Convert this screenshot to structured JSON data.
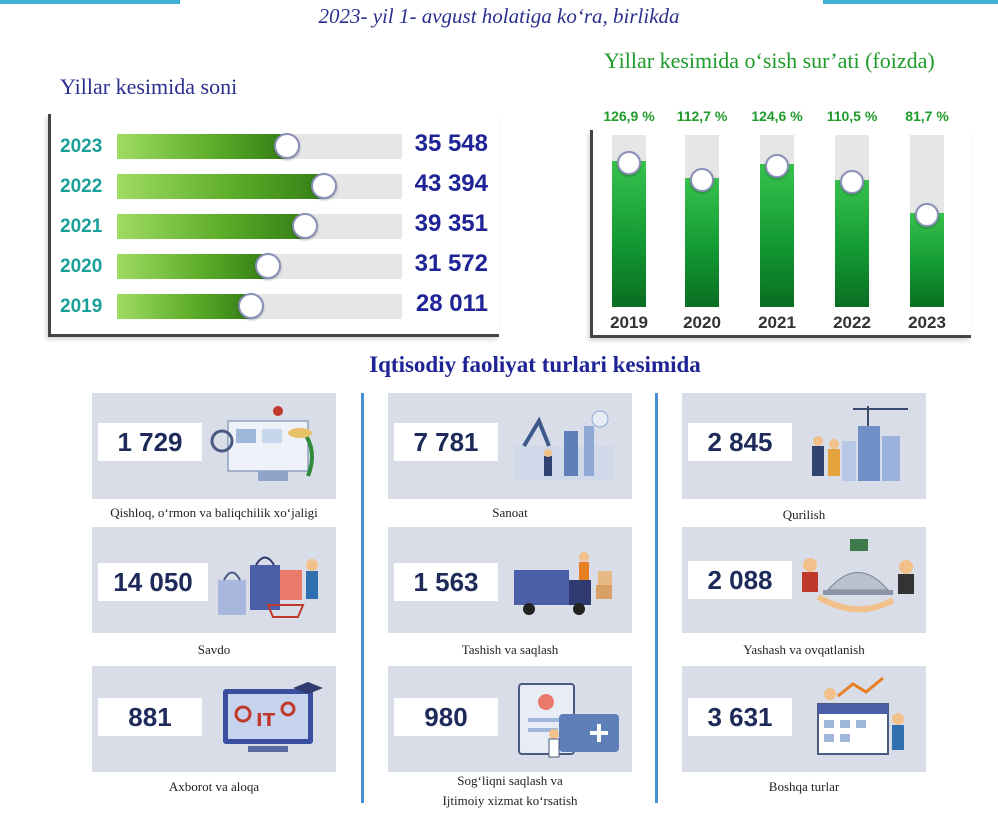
{
  "header": {
    "subtitle": "2023- yil 1- avgust holatiga ko‘ra, birlikda"
  },
  "chart_data": [
    {
      "type": "bar",
      "orientation": "horizontal",
      "title": "Yillar kesimida soni",
      "categories": [
        "2023",
        "2022",
        "2021",
        "2020",
        "2019"
      ],
      "values": [
        35548,
        43394,
        39351,
        31572,
        28011
      ],
      "value_labels": [
        "35 548",
        "43 394",
        "39 351",
        "31 572",
        "28 011"
      ],
      "colors": {
        "bar": "#5fae2a",
        "track": "#e6e6e6",
        "year_text": "#1aa09a",
        "value_text": "#1e2496"
      }
    },
    {
      "type": "bar",
      "orientation": "vertical",
      "title": "Yillar kesimida o‘sish sur’ati (foizda)",
      "categories": [
        "2019",
        "2020",
        "2021",
        "2022",
        "2023"
      ],
      "values": [
        126.9,
        112.7,
        124.6,
        110.5,
        81.7
      ],
      "value_labels": [
        "126,9 %",
        "112,7 %",
        "124,6 %",
        "110,5 %",
        "81,7 %"
      ],
      "colors": {
        "bar": "#139a33",
        "track": "#e6e6e6",
        "pct_text": "#1f9b2a"
      }
    }
  ],
  "sections": {
    "title": "Iqtisodiy faoliyat turlari kesimida",
    "cards": [
      {
        "value": "1 729",
        "caption": "Qishloq, o‘rmon va baliqchilik xo‘jaligi",
        "icon": "agriculture-illustration"
      },
      {
        "value": "7 781",
        "caption": "Sanoat",
        "icon": "factory-illustration"
      },
      {
        "value": "2 845",
        "caption": "Qurilish",
        "icon": "construction-illustration"
      },
      {
        "value": "14 050",
        "caption": "Savdo",
        "icon": "shopping-illustration"
      },
      {
        "value": "1 563",
        "caption": "Tashish va saqlash",
        "icon": "truck-illustration"
      },
      {
        "value": "2 088",
        "caption": "Yashash va ovqatlanish",
        "icon": "hotel-food-illustration"
      },
      {
        "value": "881",
        "caption": "Axborot va aloqa",
        "icon": "it-illustration"
      },
      {
        "value": "980",
        "caption": "Sog‘liqni saqlash va",
        "caption2": "Ijtimoiy xizmat ko‘rsatish",
        "icon": "medical-illustration"
      },
      {
        "value": "3 631",
        "caption": "Boshqa turlar",
        "icon": "calendar-chart-illustration"
      }
    ]
  }
}
